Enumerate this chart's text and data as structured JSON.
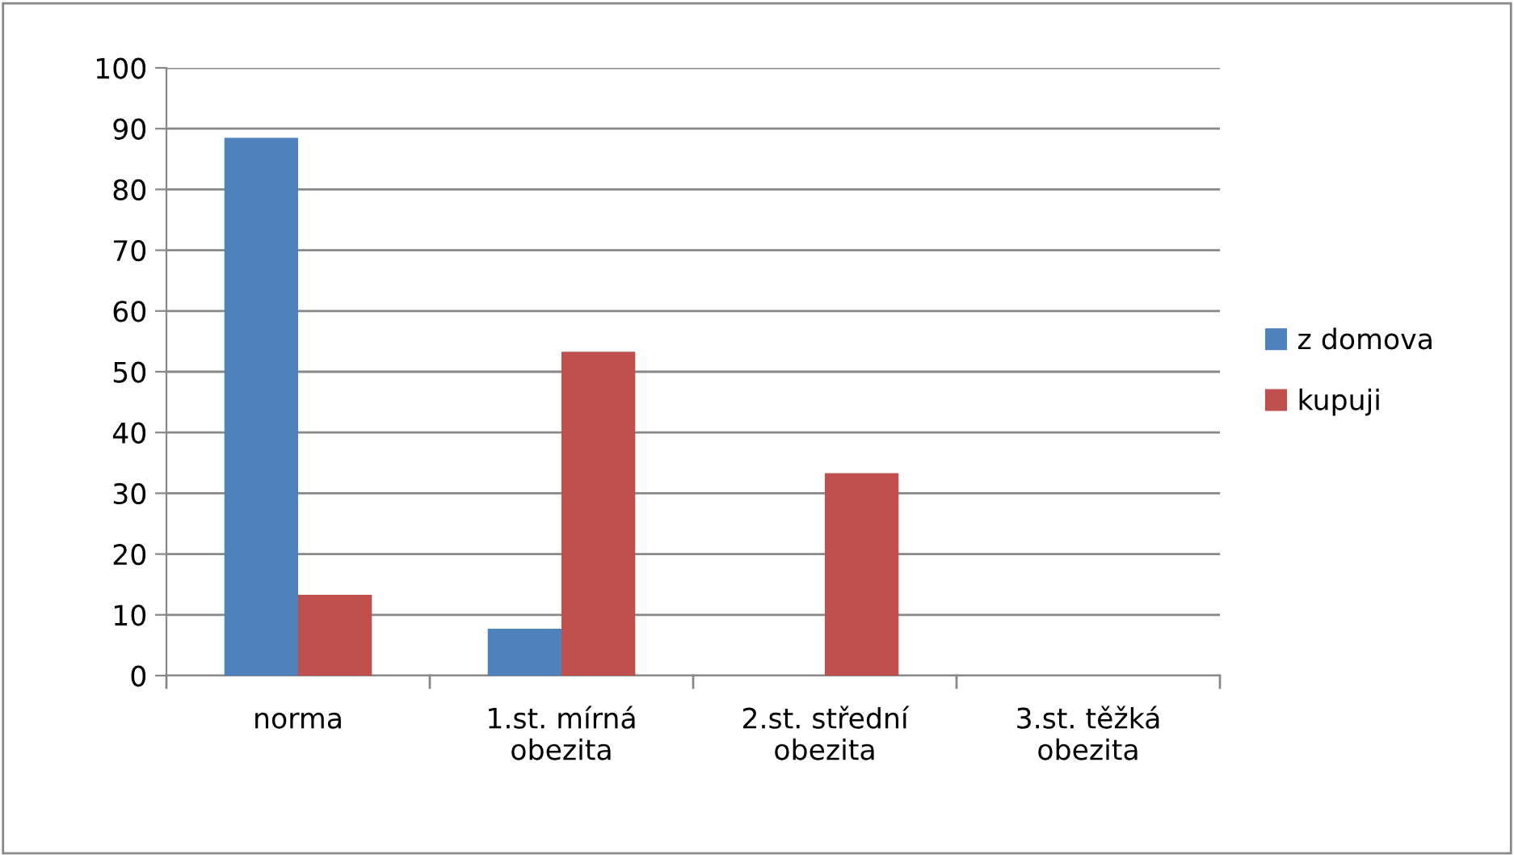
{
  "chart_data": {
    "type": "bar",
    "categories": [
      "norma",
      "1.st. mírná\nobezita",
      "2.st. střední\nobezita",
      "3.st. těžká\nobezita"
    ],
    "series": [
      {
        "name": "z domova",
        "color": "#4f81bd",
        "values": [
          88.5,
          7.7,
          0,
          0
        ]
      },
      {
        "name": "kupuji",
        "color": "#c0504d",
        "values": [
          13.3,
          53.3,
          33.3,
          0
        ]
      }
    ],
    "ylim": [
      0,
      100
    ],
    "yticks": [
      0,
      10,
      20,
      30,
      40,
      50,
      60,
      70,
      80,
      90,
      100
    ],
    "grid": "y",
    "legend": "right"
  }
}
